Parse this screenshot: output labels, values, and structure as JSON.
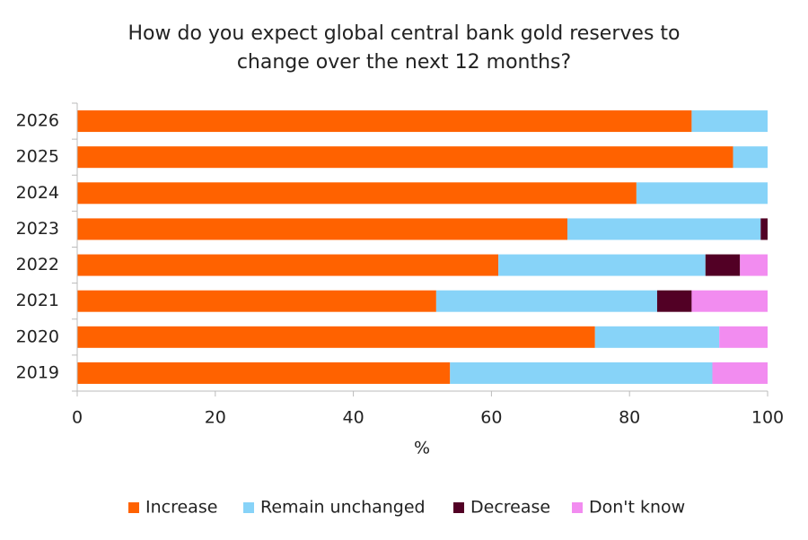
{
  "chart_data": {
    "type": "stacked_barh",
    "title": [
      "How do you expect global central bank gold reserves to",
      "change over the next 12 months?"
    ],
    "x_label": "%",
    "categories": [
      "2026",
      "2025",
      "2024",
      "2023",
      "2022",
      "2021",
      "2020",
      "2019"
    ],
    "series": [
      {
        "name": "Increase",
        "color": "#ff6200",
        "values": [
          89,
          95,
          81,
          71,
          61,
          52,
          75,
          54
        ]
      },
      {
        "name": "Remain unchanged",
        "color": "#87d3f8",
        "values": [
          11,
          5,
          19,
          28,
          30,
          32,
          18,
          38
        ]
      },
      {
        "name": "Decrease",
        "color": "#520025",
        "values": [
          0,
          0,
          0,
          1,
          5,
          5,
          0,
          0
        ]
      },
      {
        "name": "Don't know",
        "color": "#f28cf0",
        "values": [
          0,
          0,
          0,
          0,
          4,
          11,
          7,
          8
        ]
      }
    ],
    "xlim": [
      0,
      100
    ],
    "xticks": [
      0,
      20,
      40,
      60,
      80,
      100
    ],
    "legend": "bottom"
  }
}
